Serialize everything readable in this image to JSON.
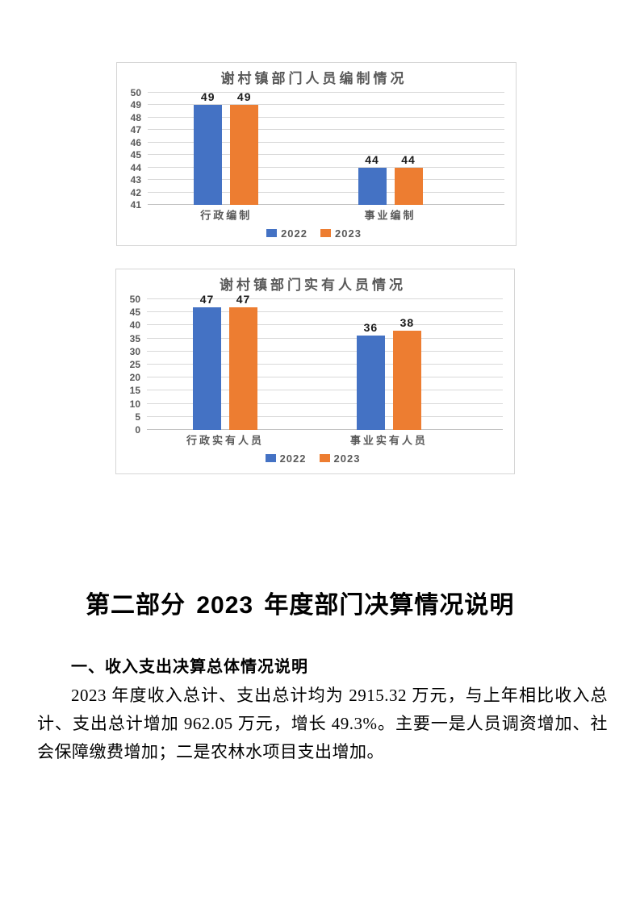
{
  "chart_data": [
    {
      "type": "bar",
      "title": "谢村镇部门人员编制情况",
      "categories": [
        "行政编制",
        "事业编制"
      ],
      "series": [
        {
          "name": "2022",
          "color": "#4472C4",
          "values": [
            49,
            44
          ]
        },
        {
          "name": "2023",
          "color": "#ED7D31",
          "values": [
            49,
            44
          ]
        }
      ],
      "ylim": [
        41,
        50
      ],
      "yticks": [
        41,
        42,
        43,
        44,
        45,
        46,
        47,
        48,
        49,
        50
      ],
      "grid": true,
      "data_labels": true,
      "legend_position": "bottom"
    },
    {
      "type": "bar",
      "title": "谢村镇部门实有人员情况",
      "categories": [
        "行政实有人员",
        "事业实有人员"
      ],
      "series": [
        {
          "name": "2022",
          "color": "#4472C4",
          "values": [
            47,
            36
          ]
        },
        {
          "name": "2023",
          "color": "#ED7D31",
          "values": [
            47,
            38
          ]
        }
      ],
      "ylim": [
        0,
        50
      ],
      "yticks": [
        0,
        5,
        10,
        15,
        20,
        25,
        30,
        35,
        40,
        45,
        50
      ],
      "grid": true,
      "data_labels": true,
      "legend_position": "bottom"
    }
  ],
  "document": {
    "section_heading": "第二部分 2023 年度部门决算情况说明",
    "subsection_heading": "一、收入支出决算总体情况说明",
    "paragraph": "2023 年度收入总计、支出总计均为 2915.32 万元，与上年相比收入总计、支出总计增加 962.05 万元，增长 49.3%。主要一是人员调资增加、社会保障缴费增加；二是农林水项目支出增加。"
  },
  "styles": {
    "chart_text_color": "#595959",
    "gridline_color": "#d9d9d9",
    "chart_border_color": "#d6d6d6",
    "bar_blue": "#4472C4",
    "bar_orange": "#ED7D31",
    "heading_color": "#000000"
  }
}
